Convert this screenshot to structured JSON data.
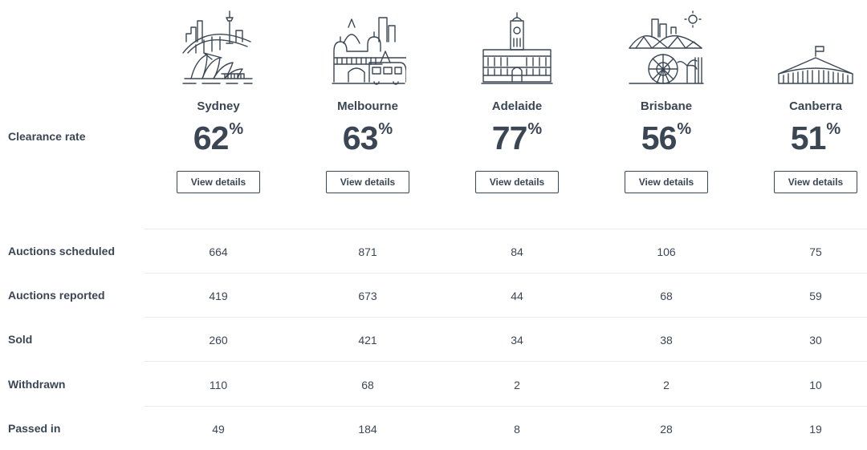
{
  "clearance_label": "Clearance rate",
  "view_details_label": "View details",
  "percent_sign": "%",
  "cities": [
    {
      "name": "Sydney",
      "rate": "62",
      "icon": "sydney-skyline-icon"
    },
    {
      "name": "Melbourne",
      "rate": "63",
      "icon": "melbourne-skyline-icon"
    },
    {
      "name": "Adelaide",
      "rate": "77",
      "icon": "adelaide-townhall-icon"
    },
    {
      "name": "Brisbane",
      "rate": "56",
      "icon": "brisbane-skyline-icon"
    },
    {
      "name": "Canberra",
      "rate": "51",
      "icon": "canberra-parliament-icon"
    }
  ],
  "rows": [
    {
      "label": "Auctions scheduled",
      "values": [
        "664",
        "871",
        "84",
        "106",
        "75"
      ]
    },
    {
      "label": "Auctions reported",
      "values": [
        "419",
        "673",
        "44",
        "68",
        "59"
      ]
    },
    {
      "label": "Sold",
      "values": [
        "260",
        "421",
        "34",
        "38",
        "30"
      ]
    },
    {
      "label": "Withdrawn",
      "values": [
        "110",
        "68",
        "2",
        "2",
        "10"
      ]
    },
    {
      "label": "Passed in",
      "values": [
        "49",
        "184",
        "8",
        "28",
        "19"
      ]
    }
  ]
}
